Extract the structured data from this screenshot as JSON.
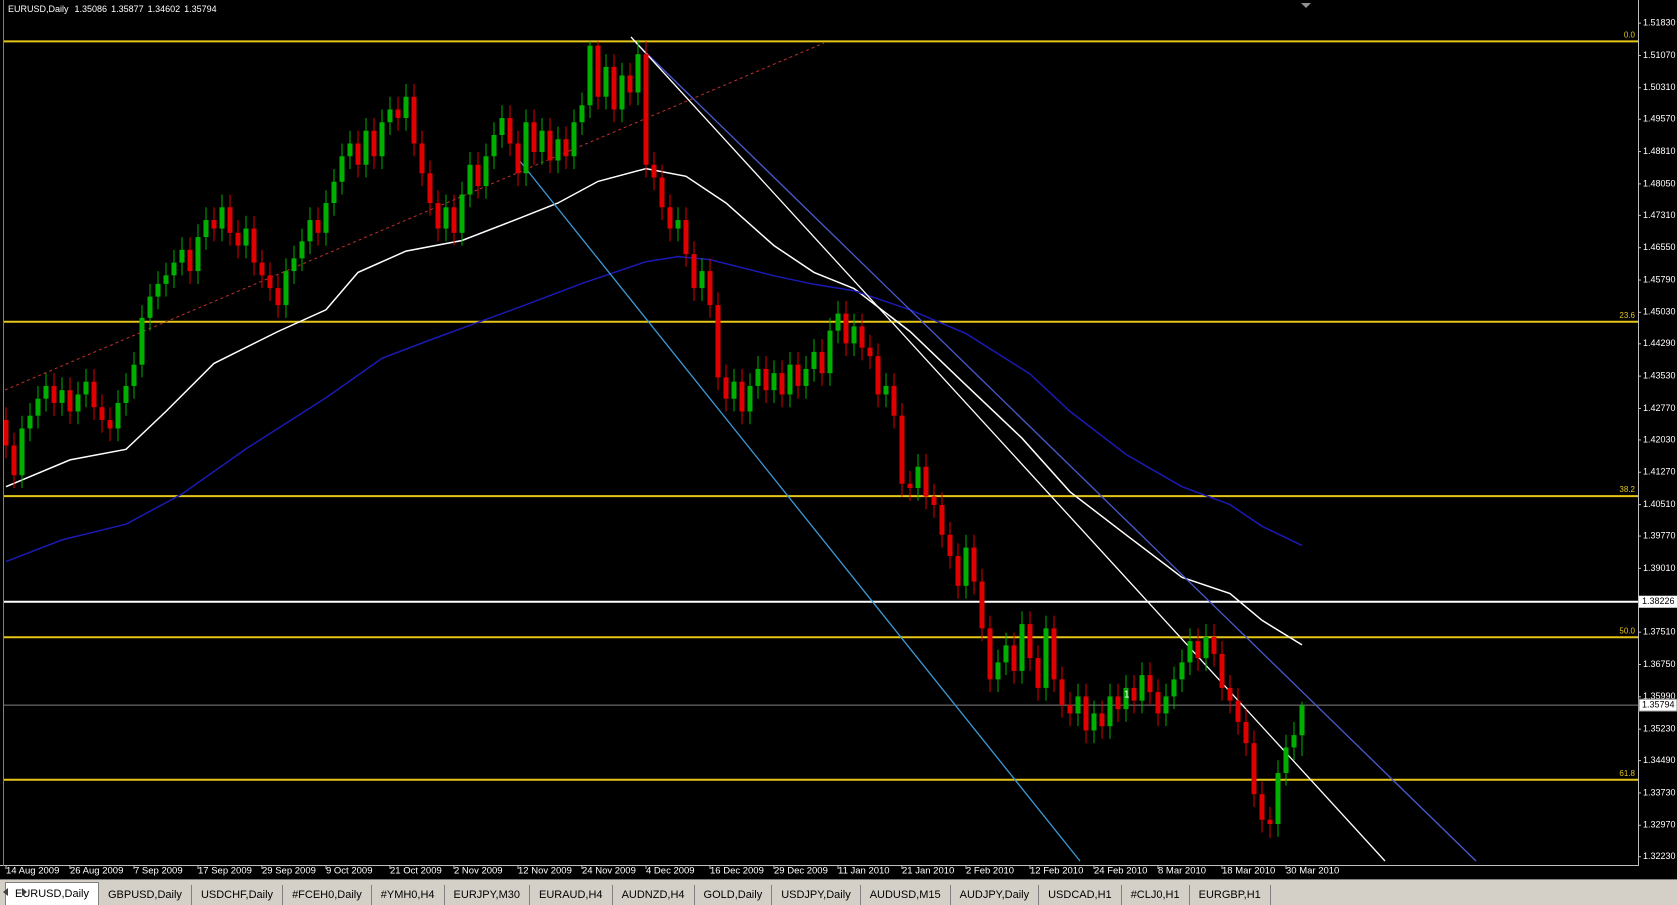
{
  "chart_data": {
    "type": "candlestick",
    "title": "EURUSD,Daily",
    "up_color": "#00b000",
    "down_color": "#e00000",
    "ylim": [
      1.3213,
      1.5228
    ],
    "yticks": [
      {
        "value": 1.5183,
        "label": "1.51830"
      },
      {
        "value": 1.5107,
        "label": "1.51070"
      },
      {
        "value": 1.5031,
        "label": "1.50310"
      },
      {
        "value": 1.4957,
        "label": "1.49570"
      },
      {
        "value": 1.4881,
        "label": "1.48810"
      },
      {
        "value": 1.4805,
        "label": "1.48050"
      },
      {
        "value": 1.4731,
        "label": "1.47310"
      },
      {
        "value": 1.4655,
        "label": "1.46550"
      },
      {
        "value": 1.4579,
        "label": "1.45790"
      },
      {
        "value": 1.4503,
        "label": "1.45030"
      },
      {
        "value": 1.4429,
        "label": "1.44290"
      },
      {
        "value": 1.4353,
        "label": "1.43530"
      },
      {
        "value": 1.4277,
        "label": "1.42770"
      },
      {
        "value": 1.4203,
        "label": "1.42030"
      },
      {
        "value": 1.4127,
        "label": "1.41270"
      },
      {
        "value": 1.4051,
        "label": "1.40510"
      },
      {
        "value": 1.3977,
        "label": "1.39770"
      },
      {
        "value": 1.3901,
        "label": "1.39010"
      },
      {
        "value": 1.3751,
        "label": "1.37510"
      },
      {
        "value": 1.3675,
        "label": "1.36750"
      },
      {
        "value": 1.3599,
        "label": "1.35990"
      },
      {
        "value": 1.3523,
        "label": "1.35230"
      },
      {
        "value": 1.3449,
        "label": "1.34490"
      },
      {
        "value": 1.3373,
        "label": "1.33730"
      },
      {
        "value": 1.3297,
        "label": "1.32970"
      },
      {
        "value": 1.3223,
        "label": "1.32230"
      }
    ],
    "xticks": [
      {
        "value": 0,
        "label": "14 Aug 2009"
      },
      {
        "value": 8,
        "label": "26 Aug 2009"
      },
      {
        "value": 16,
        "label": "7 Sep 2009"
      },
      {
        "value": 24,
        "label": "17 Sep 2009"
      },
      {
        "value": 32,
        "label": "29 Sep 2009"
      },
      {
        "value": 40,
        "label": "9 Oct 2009"
      },
      {
        "value": 48,
        "label": "21 Oct 2009"
      },
      {
        "value": 56,
        "label": "2 Nov 2009"
      },
      {
        "value": 64,
        "label": "12 Nov 2009"
      },
      {
        "value": 72,
        "label": "24 Nov 2009"
      },
      {
        "value": 80,
        "label": "4 Dec 2009"
      },
      {
        "value": 88,
        "label": "16 Dec 2009"
      },
      {
        "value": 96,
        "label": "29 Dec 2009"
      },
      {
        "value": 104,
        "label": "11 Jan 2010"
      },
      {
        "value": 112,
        "label": "21 Jan 2010"
      },
      {
        "value": 120,
        "label": "2 Feb 2010"
      },
      {
        "value": 128,
        "label": "12 Feb 2010"
      },
      {
        "value": 136,
        "label": "24 Feb 2010"
      },
      {
        "value": 144,
        "label": "8 Mar 2010"
      },
      {
        "value": 152,
        "label": "18 Mar 2010"
      },
      {
        "value": 160,
        "label": "30 Mar 2010"
      }
    ],
    "open": [
      1.425,
      1.419,
      1.412,
      1.423,
      1.426,
      1.43,
      1.433,
      1.429,
      1.432,
      1.427,
      1.431,
      1.434,
      1.428,
      1.425,
      1.423,
      1.429,
      1.433,
      1.438,
      1.449,
      1.454,
      1.457,
      1.459,
      1.462,
      1.465,
      1.46,
      1.468,
      1.472,
      1.47,
      1.475,
      1.469,
      1.466,
      1.47,
      1.462,
      1.459,
      1.456,
      1.452,
      1.46,
      1.463,
      1.467,
      1.472,
      1.469,
      1.476,
      1.481,
      1.487,
      1.49,
      1.485,
      1.493,
      1.487,
      1.495,
      1.498,
      1.496,
      1.501,
      1.49,
      1.483,
      1.476,
      1.47,
      1.475,
      1.469,
      1.478,
      1.485,
      1.48,
      1.487,
      1.492,
      1.496,
      1.49,
      1.483,
      1.495,
      1.488,
      1.493,
      1.486,
      1.491,
      1.487,
      1.495,
      1.499,
      1.513,
      1.501,
      1.508,
      1.498,
      1.506,
      1.502,
      1.511,
      1.485,
      1.482,
      1.475,
      1.47,
      1.472,
      1.464,
      1.456,
      1.46,
      1.452,
      1.435,
      1.43,
      1.434,
      1.427,
      1.433,
      1.437,
      1.432,
      1.436,
      1.431,
      1.438,
      1.433,
      1.437,
      1.441,
      1.436,
      1.446,
      1.45,
      1.443,
      1.447,
      1.442,
      1.44,
      1.431,
      1.433,
      1.426,
      1.41,
      1.409,
      1.414,
      1.407,
      1.405,
      1.398,
      1.393,
      1.386,
      1.395,
      1.387,
      1.376,
      1.364,
      1.368,
      1.372,
      1.366,
      1.377,
      1.369,
      1.362,
      1.376,
      1.364,
      1.358,
      1.356,
      1.36,
      1.352,
      1.356,
      1.353,
      1.36,
      1.357,
      1.362,
      1.359,
      1.365,
      1.361,
      1.356,
      1.36,
      1.364,
      1.368,
      1.373,
      1.369,
      1.374,
      1.37,
      1.362,
      1.359,
      1.354,
      1.349,
      1.337,
      1.331,
      1.33,
      1.342,
      1.348,
      1.35086
    ],
    "high": [
      1.428,
      1.422,
      1.426,
      1.429,
      1.433,
      1.436,
      1.436,
      1.435,
      1.435,
      1.434,
      1.437,
      1.437,
      1.431,
      1.428,
      1.432,
      1.436,
      1.441,
      1.452,
      1.457,
      1.46,
      1.462,
      1.465,
      1.468,
      1.468,
      1.471,
      1.475,
      1.475,
      1.478,
      1.478,
      1.472,
      1.473,
      1.473,
      1.465,
      1.462,
      1.459,
      1.463,
      1.466,
      1.47,
      1.475,
      1.475,
      1.479,
      1.484,
      1.49,
      1.493,
      1.493,
      1.496,
      1.496,
      1.498,
      1.501,
      1.501,
      1.504,
      1.504,
      1.493,
      1.486,
      1.479,
      1.478,
      1.478,
      1.481,
      1.488,
      1.488,
      1.49,
      1.495,
      1.499,
      1.499,
      1.493,
      1.498,
      1.498,
      1.496,
      1.496,
      1.494,
      1.494,
      1.498,
      1.502,
      1.514,
      1.514,
      1.511,
      1.511,
      1.509,
      1.509,
      1.5144,
      1.514,
      1.488,
      1.485,
      1.478,
      1.475,
      1.475,
      1.467,
      1.463,
      1.463,
      1.455,
      1.438,
      1.437,
      1.437,
      1.436,
      1.44,
      1.44,
      1.439,
      1.439,
      1.441,
      1.441,
      1.44,
      1.444,
      1.444,
      1.449,
      1.453,
      1.453,
      1.45,
      1.45,
      1.445,
      1.443,
      1.436,
      1.436,
      1.429,
      1.413,
      1.417,
      1.417,
      1.41,
      1.408,
      1.401,
      1.396,
      1.398,
      1.398,
      1.39,
      1.379,
      1.371,
      1.375,
      1.375,
      1.38,
      1.38,
      1.372,
      1.379,
      1.379,
      1.367,
      1.361,
      1.363,
      1.363,
      1.359,
      1.359,
      1.363,
      1.363,
      1.365,
      1.365,
      1.368,
      1.368,
      1.364,
      1.363,
      1.367,
      1.371,
      1.376,
      1.376,
      1.377,
      1.377,
      1.373,
      1.365,
      1.362,
      1.357,
      1.352,
      1.34,
      1.334,
      1.345,
      1.351,
      1.354,
      1.35877
    ],
    "low": [
      1.416,
      1.409,
      1.409,
      1.42,
      1.423,
      1.427,
      1.426,
      1.426,
      1.424,
      1.424,
      1.428,
      1.425,
      1.422,
      1.42,
      1.42,
      1.426,
      1.43,
      1.435,
      1.446,
      1.451,
      1.454,
      1.456,
      1.459,
      1.457,
      1.457,
      1.465,
      1.467,
      1.467,
      1.466,
      1.463,
      1.463,
      1.459,
      1.456,
      1.453,
      1.449,
      1.449,
      1.457,
      1.46,
      1.464,
      1.466,
      1.466,
      1.473,
      1.478,
      1.484,
      1.482,
      1.482,
      1.484,
      1.484,
      1.492,
      1.493,
      1.493,
      1.487,
      1.48,
      1.473,
      1.467,
      1.467,
      1.466,
      1.466,
      1.475,
      1.477,
      1.477,
      1.484,
      1.489,
      1.487,
      1.48,
      1.48,
      1.485,
      1.485,
      1.483,
      1.483,
      1.484,
      1.484,
      1.492,
      1.496,
      1.498,
      1.498,
      1.495,
      1.495,
      1.499,
      1.499,
      1.482,
      1.479,
      1.472,
      1.467,
      1.467,
      1.461,
      1.453,
      1.453,
      1.449,
      1.432,
      1.427,
      1.427,
      1.424,
      1.424,
      1.43,
      1.429,
      1.429,
      1.428,
      1.428,
      1.43,
      1.43,
      1.434,
      1.433,
      1.433,
      1.443,
      1.44,
      1.44,
      1.439,
      1.437,
      1.428,
      1.428,
      1.423,
      1.407,
      1.406,
      1.406,
      1.404,
      1.402,
      1.395,
      1.39,
      1.383,
      1.383,
      1.384,
      1.373,
      1.361,
      1.361,
      1.365,
      1.363,
      1.363,
      1.366,
      1.359,
      1.359,
      1.361,
      1.355,
      1.353,
      1.353,
      1.349,
      1.349,
      1.35,
      1.35,
      1.354,
      1.354,
      1.356,
      1.356,
      1.358,
      1.353,
      1.353,
      1.357,
      1.361,
      1.365,
      1.366,
      1.366,
      1.367,
      1.359,
      1.356,
      1.351,
      1.346,
      1.334,
      1.328,
      1.3267,
      1.327,
      1.339,
      1.345,
      1.34602
    ],
    "close": [
      1.419,
      1.412,
      1.423,
      1.426,
      1.43,
      1.433,
      1.429,
      1.432,
      1.427,
      1.431,
      1.434,
      1.428,
      1.425,
      1.423,
      1.429,
      1.433,
      1.438,
      1.449,
      1.454,
      1.457,
      1.459,
      1.462,
      1.465,
      1.46,
      1.468,
      1.472,
      1.47,
      1.475,
      1.469,
      1.466,
      1.47,
      1.462,
      1.459,
      1.456,
      1.452,
      1.46,
      1.463,
      1.467,
      1.472,
      1.469,
      1.476,
      1.481,
      1.487,
      1.49,
      1.485,
      1.493,
      1.487,
      1.495,
      1.498,
      1.496,
      1.501,
      1.49,
      1.483,
      1.476,
      1.47,
      1.475,
      1.469,
      1.478,
      1.485,
      1.48,
      1.487,
      1.492,
      1.496,
      1.49,
      1.483,
      1.495,
      1.488,
      1.493,
      1.486,
      1.491,
      1.487,
      1.495,
      1.499,
      1.513,
      1.501,
      1.508,
      1.498,
      1.506,
      1.502,
      1.511,
      1.485,
      1.482,
      1.475,
      1.47,
      1.472,
      1.464,
      1.456,
      1.46,
      1.452,
      1.435,
      1.43,
      1.434,
      1.427,
      1.433,
      1.437,
      1.432,
      1.436,
      1.431,
      1.438,
      1.433,
      1.437,
      1.441,
      1.436,
      1.446,
      1.45,
      1.443,
      1.447,
      1.442,
      1.44,
      1.431,
      1.433,
      1.426,
      1.41,
      1.409,
      1.414,
      1.407,
      1.405,
      1.398,
      1.393,
      1.386,
      1.395,
      1.387,
      1.376,
      1.364,
      1.368,
      1.372,
      1.366,
      1.377,
      1.369,
      1.362,
      1.376,
      1.364,
      1.358,
      1.356,
      1.36,
      1.352,
      1.356,
      1.353,
      1.36,
      1.357,
      1.362,
      1.359,
      1.365,
      1.361,
      1.356,
      1.36,
      1.364,
      1.368,
      1.373,
      1.369,
      1.374,
      1.37,
      1.362,
      1.359,
      1.354,
      1.349,
      1.337,
      1.331,
      1.33,
      1.342,
      1.348,
      1.3509,
      1.35794
    ],
    "series": [
      {
        "color": "#ffffff",
        "x": [
          0,
          8,
          15,
          20,
          26,
          34,
          40,
          44,
          50,
          57,
          64,
          69,
          74,
          80,
          85,
          90,
          96,
          101,
          106,
          113,
          120,
          127,
          133,
          140,
          147,
          153,
          157,
          162
        ],
        "values": [
          1.4093,
          1.4156,
          1.4181,
          1.427,
          1.4383,
          1.4458,
          1.4509,
          1.4597,
          1.4647,
          1.4672,
          1.4723,
          1.476,
          1.4811,
          1.4841,
          1.4823,
          1.476,
          1.466,
          1.4597,
          1.4559,
          1.4458,
          1.4332,
          1.4207,
          1.4081,
          1.398,
          1.388,
          1.3842,
          1.3779,
          1.3721
        ]
      },
      {
        "color": "#1a1ab4",
        "x": [
          0,
          7,
          15,
          22,
          30,
          40,
          47,
          53,
          64,
          72,
          80,
          84,
          88,
          96,
          101,
          106,
          113,
          120,
          128,
          133,
          140,
          147,
          153,
          157,
          162
        ],
        "values": [
          1.3917,
          1.3968,
          1.4005,
          1.4076,
          1.4182,
          1.4302,
          1.4395,
          1.4438,
          1.4514,
          1.4571,
          1.4622,
          1.4634,
          1.4627,
          1.4589,
          1.4569,
          1.4554,
          1.4509,
          1.4453,
          1.4358,
          1.427,
          1.4169,
          1.4093,
          1.4051,
          1.4,
          1.3955
        ]
      }
    ],
    "levels": [
      {
        "value": 1.514,
        "label": "0.0",
        "color": "#e6c619"
      },
      {
        "value": 1.4481,
        "label": "23.6",
        "color": "#e6c619"
      },
      {
        "value": 1.4071,
        "label": "38.2",
        "color": "#e6c619"
      },
      {
        "value": 1.3739,
        "label": "50.0",
        "color": "#e6c619"
      },
      {
        "value": 1.3404,
        "label": "61.8",
        "color": "#e6c619"
      },
      {
        "value": 1.38226,
        "color": "#ffffff"
      }
    ],
    "annotation": "1"
  },
  "tabs": [
    "EURUSD,Daily",
    "GBPUSD,Daily",
    "USDCHF,Daily",
    "#FCEH0,Daily",
    "#YMH0,H4",
    "EURJPY,M30",
    "EURAUD,H4",
    "AUDNZD,H4",
    "GOLD,Daily",
    "USDJPY,Daily",
    "AUDUSD,M15",
    "AUDJPY,Daily",
    "USDCAD,H1",
    "#CLJ0,H1",
    "EURGBP,H1"
  ]
}
